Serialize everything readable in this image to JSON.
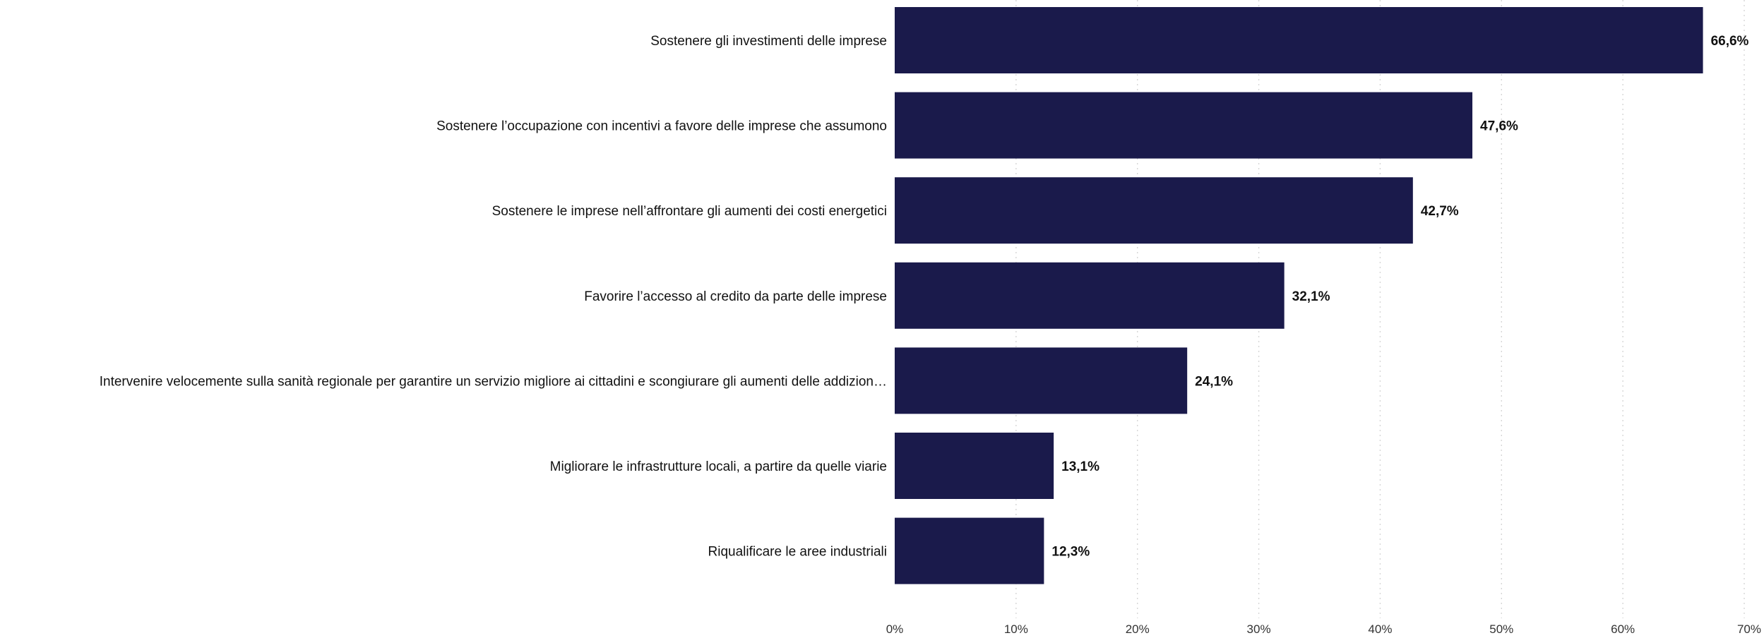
{
  "chart_data": {
    "type": "bar",
    "orientation": "horizontal",
    "categories": [
      "Sostenere gli investimenti delle imprese",
      "Sostenere l’occupazione con incentivi a favore delle imprese che assumono",
      "Sostenere le imprese nell’affrontare gli aumenti dei costi energetici",
      "Favorire l’accesso al credito da parte delle imprese",
      "Intervenire velocemente sulla sanità regionale per garantire un servizio migliore ai cittadini e scongiurare gli aumenti delle addizion…",
      "Migliorare le infrastrutture locali, a partire da quelle viarie",
      "Riqualificare le aree industriali"
    ],
    "values": [
      66.6,
      47.6,
      42.7,
      32.1,
      24.1,
      13.1,
      12.3
    ],
    "value_labels": [
      "66,6%",
      "47,6%",
      "42,7%",
      "32,1%",
      "24,1%",
      "13,1%",
      "12,3%"
    ],
    "xlim": [
      0,
      70
    ],
    "x_ticks": [
      0,
      10,
      20,
      30,
      40,
      50,
      60,
      70
    ],
    "x_tick_labels": [
      "0%",
      "10%",
      "20%",
      "30%",
      "40%",
      "50%",
      "60%",
      "70%"
    ],
    "grid": "vertical dotted",
    "bar_color": "#1a1a4b",
    "title": "",
    "xlabel": "",
    "ylabel": ""
  }
}
